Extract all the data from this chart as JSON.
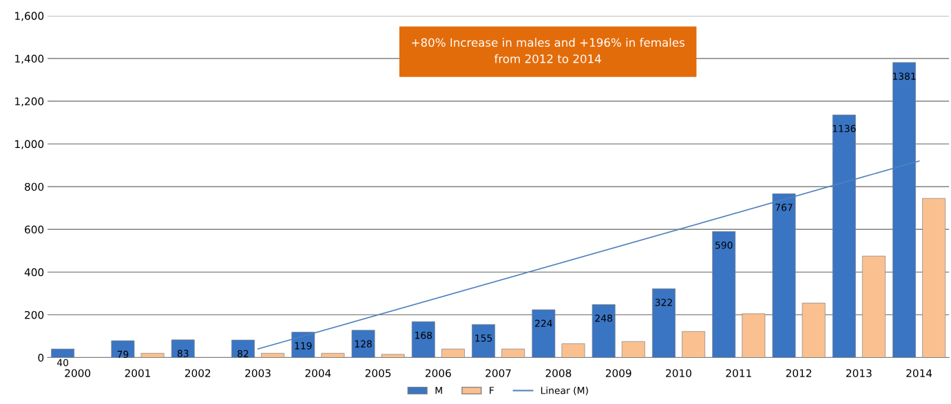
{
  "chart_data": {
    "type": "bar",
    "categories": [
      "2000",
      "2001",
      "2002",
      "2003",
      "2004",
      "2005",
      "2006",
      "2007",
      "2008",
      "2009",
      "2010",
      "2011",
      "2012",
      "2013",
      "2014"
    ],
    "series": [
      {
        "name": "M",
        "color": "#3a75c4",
        "values": [
          40,
          79,
          83,
          82,
          119,
          128,
          168,
          155,
          224,
          248,
          322,
          590,
          767,
          1136,
          1381
        ],
        "value_labels": [
          "40",
          "79",
          "83",
          "82",
          "119",
          "128",
          "168",
          "155",
          "224",
          "248",
          "322",
          "590",
          "767",
          "1136",
          "1381"
        ]
      },
      {
        "name": "F",
        "color": "#fac08f",
        "values": [
          null,
          20,
          null,
          20,
          20,
          15,
          40,
          40,
          65,
          75,
          122,
          205,
          255,
          475,
          745
        ]
      },
      {
        "name": "Linear (M)",
        "type": "line",
        "color": "#4f81bd",
        "values": [
          null,
          null,
          null,
          40,
          null,
          null,
          null,
          null,
          null,
          null,
          null,
          null,
          null,
          null,
          920
        ]
      }
    ],
    "ylim": [
      0,
      1600
    ],
    "yticks": [
      {
        "value": 0,
        "label": "0"
      },
      {
        "value": 200,
        "label": "200"
      },
      {
        "value": 400,
        "label": "400"
      },
      {
        "value": 600,
        "label": "600"
      },
      {
        "value": 800,
        "label": "800"
      },
      {
        "value": 1000,
        "label": "1,000"
      },
      {
        "value": 1200,
        "label": "1,200"
      },
      {
        "value": 1400,
        "label": "1,400"
      },
      {
        "value": 1600,
        "label": "1,600"
      }
    ],
    "grid": "y",
    "legend": "bottom",
    "annotations": [
      "+80% Increase in males and +196% in females\nfrom 2012 to 2014"
    ]
  }
}
